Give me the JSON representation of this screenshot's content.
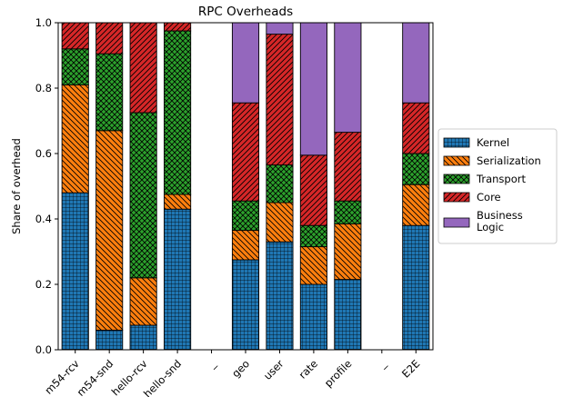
{
  "chart_data": {
    "type": "bar",
    "stacked": true,
    "title": "RPC Overheads",
    "xlabel": "",
    "ylabel": "Share of overhead",
    "ylim": [
      0,
      1.0
    ],
    "yticks": [
      "0.0",
      "0.2",
      "0.4",
      "0.6",
      "0.8",
      "1.0"
    ],
    "categories": [
      "m54-rcv",
      "m54-snd",
      "hello-rcv",
      "hello-snd",
      "_",
      "geo",
      "user",
      "rate",
      "profile",
      "_",
      "E2E"
    ],
    "series": [
      {
        "name": "Kernel",
        "color": "#1f77b4",
        "hatch": "grid",
        "values": [
          0.48,
          0.06,
          0.075,
          0.43,
          0,
          0.275,
          0.33,
          0.2,
          0.215,
          0,
          0.38
        ]
      },
      {
        "name": "Serialization",
        "color": "#ff7f0e",
        "hatch": "diag-back",
        "values": [
          0.33,
          0.61,
          0.145,
          0.045,
          0,
          0.09,
          0.12,
          0.115,
          0.17,
          0,
          0.125
        ]
      },
      {
        "name": "Transport",
        "color": "#2ca02c",
        "hatch": "cross",
        "values": [
          0.11,
          0.235,
          0.505,
          0.5,
          0,
          0.09,
          0.115,
          0.065,
          0.07,
          0,
          0.095
        ]
      },
      {
        "name": "Core",
        "color": "#d62728",
        "hatch": "diag-fwd",
        "values": [
          0.08,
          0.095,
          0.275,
          0.025,
          0,
          0.3,
          0.4,
          0.215,
          0.21,
          0,
          0.155
        ]
      },
      {
        "name": "Business\nLogic",
        "color": "#9467bd",
        "hatch": "none",
        "values": [
          0,
          0,
          0,
          0,
          0,
          0.245,
          0.035,
          0.405,
          0.335,
          0,
          0.245
        ]
      }
    ],
    "legend_position": "right"
  }
}
